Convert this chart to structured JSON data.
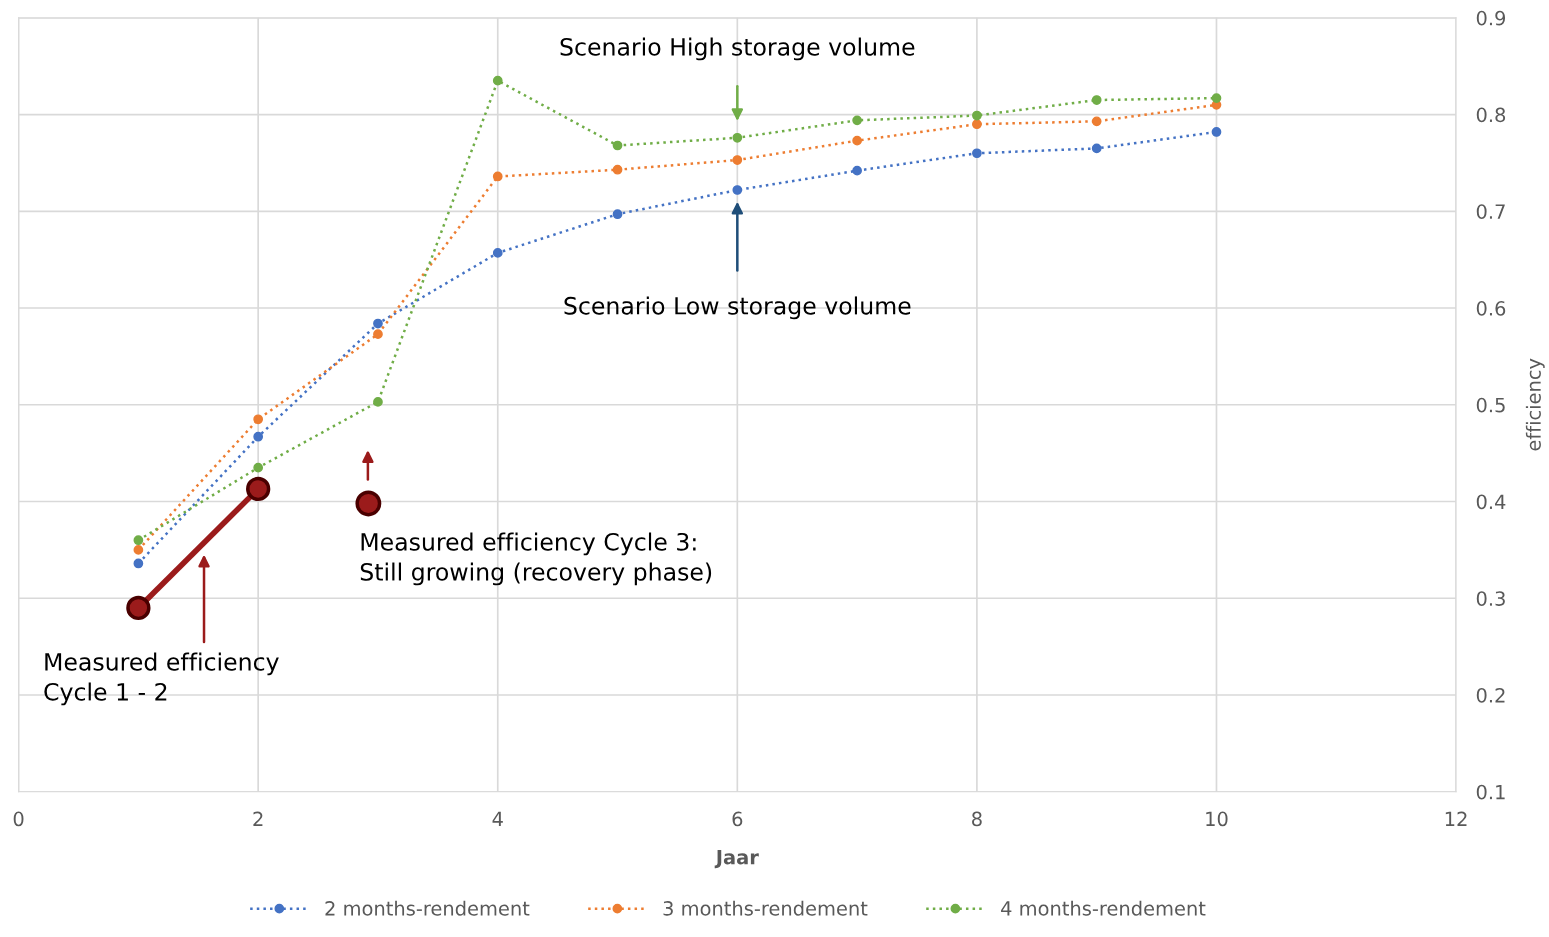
{
  "chart_data": {
    "type": "line",
    "xlabel": "Jaar",
    "ylabel": "efficiency",
    "x": [
      1,
      2,
      3,
      4,
      5,
      6,
      7,
      8,
      9,
      10
    ],
    "series": [
      {
        "name": "2 months-rendement",
        "color": "#4472c4",
        "values": [
          0.336,
          0.467,
          0.584,
          0.657,
          0.697,
          0.722,
          0.742,
          0.76,
          0.765,
          0.782
        ]
      },
      {
        "name": "3 months-rendement",
        "color": "#ed7d31",
        "values": [
          0.35,
          0.485,
          0.573,
          0.736,
          0.743,
          0.753,
          0.773,
          0.79,
          0.793,
          0.81
        ]
      },
      {
        "name": "4 months-rendement",
        "color": "#70ad47",
        "values": [
          0.36,
          0.435,
          0.503,
          0.835,
          0.768,
          0.776,
          0.794,
          0.799,
          0.815,
          0.817
        ]
      },
      {
        "type": "line",
        "color": "#9b1b1b",
        "line_style": "solid",
        "x": [
          1,
          2
        ],
        "values": [
          0.29,
          0.413
        ]
      },
      {
        "type": "scatter",
        "color": "#9b1b1b",
        "x": [
          2.92
        ],
        "values": [
          0.398
        ]
      }
    ],
    "xlim": [
      0,
      12
    ],
    "xticks": [
      0,
      2,
      4,
      6,
      8,
      10,
      12
    ],
    "ylim": [
      0.1,
      0.9
    ],
    "yticks": [
      0.1,
      0.2,
      0.3,
      0.4,
      0.5,
      0.6,
      0.7,
      0.8,
      0.9
    ],
    "grid": true,
    "legend": "bottom",
    "marker": "circle",
    "line_style": "dotted",
    "annotations": [
      "Scenario High storage volume",
      "Scenario Low storage volume",
      "Measured efficiency Cycle 3:\nStill growing (recovery phase)",
      "Measured efficiency\nCycle 1 - 2"
    ]
  }
}
